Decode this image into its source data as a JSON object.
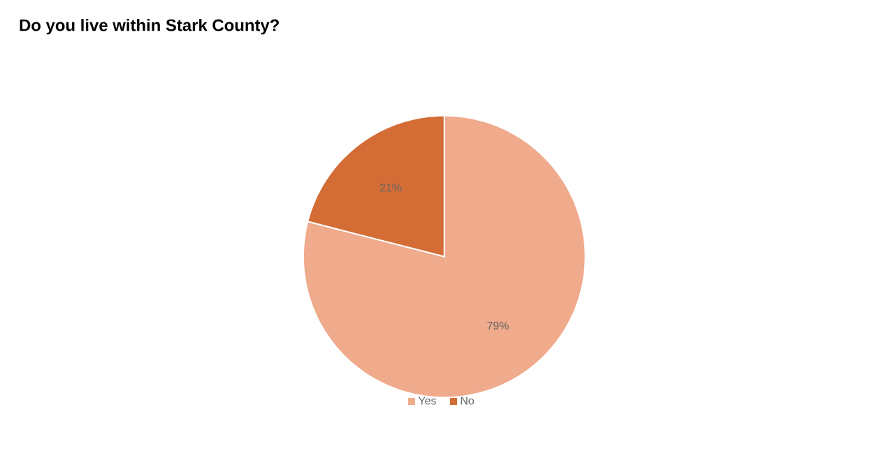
{
  "chart_data": {
    "type": "pie",
    "title": "Do you live within Stark County?",
    "categories": [
      "Yes",
      "No"
    ],
    "values": [
      79,
      21
    ],
    "value_labels": [
      "79%",
      "21%"
    ],
    "colors": [
      "#f0aa8c",
      "#d36d35"
    ],
    "legend": "bottom"
  }
}
